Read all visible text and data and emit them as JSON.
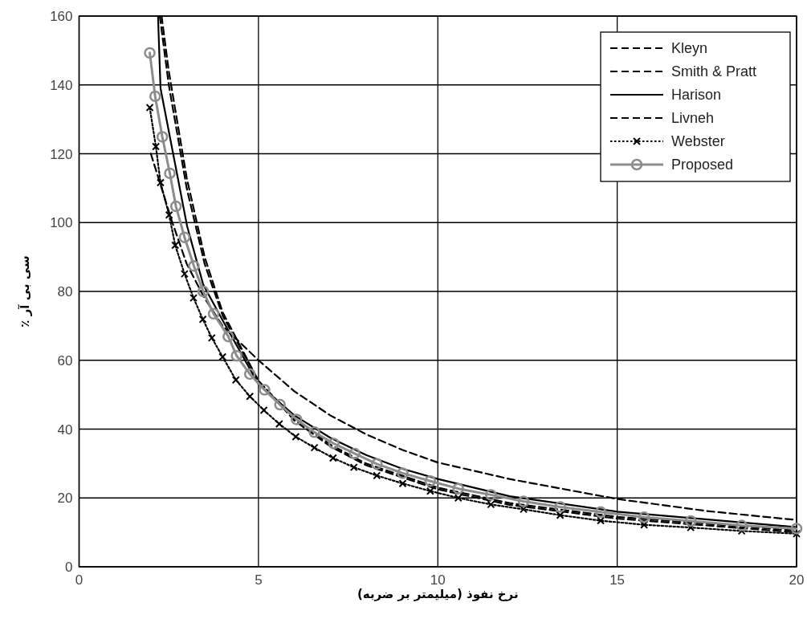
{
  "chart_data": {
    "type": "line",
    "xlabel": "نرخ نفوذ (میلیمتر بر ضربه)",
    "ylabel": "سی بی آر ٪",
    "xlim": [
      0,
      20
    ],
    "ylim": [
      0,
      160
    ],
    "xticks": [
      0,
      5,
      10,
      15,
      20
    ],
    "yticks": [
      0,
      20,
      40,
      60,
      80,
      100,
      120,
      140,
      160
    ],
    "grid": true,
    "legend": "top right",
    "series": [
      {
        "name": "Kleyn",
        "color": "#000000",
        "line_style": "dashed",
        "marker": "none",
        "x": [
          2,
          2.3,
          2.6,
          3,
          3.5,
          4,
          4.5,
          5,
          6,
          7,
          8,
          9,
          10,
          12,
          15,
          17.5,
          20
        ],
        "values": [
          120,
          110,
          100,
          88,
          78,
          70,
          65,
          60,
          51,
          44,
          38.5,
          34,
          30.3,
          25.5,
          19.7,
          16.2,
          13.6
        ]
      },
      {
        "name": "Smith & Pratt",
        "color": "#000000",
        "line_style": "dashed",
        "marker": "none",
        "x": [
          2.25,
          2.5,
          3,
          3.5,
          4,
          5,
          6,
          7,
          8,
          10,
          12,
          15,
          20
        ],
        "values": [
          160,
          140,
          110,
          88,
          73,
          54,
          43,
          35.5,
          30,
          23,
          18.5,
          14.5,
          10.5
        ]
      },
      {
        "name": "Harison",
        "color": "#000000",
        "line_style": "solid",
        "marker": "none",
        "x": [
          2.2,
          2.27,
          2.64,
          3.01,
          3.46,
          3.98,
          5,
          6,
          7,
          8,
          9,
          10,
          12,
          15,
          20
        ],
        "values": [
          160,
          139,
          119,
          99,
          82,
          72,
          53,
          44,
          37.5,
          32.5,
          28.5,
          25.5,
          20.5,
          16,
          11.5
        ]
      },
      {
        "name": "Livneh",
        "color": "#000000",
        "line_style": "dashed",
        "marker": "none",
        "x": [
          2.3,
          2.5,
          3,
          3.5,
          4,
          5,
          6,
          7,
          8,
          10,
          12,
          15,
          20
        ],
        "values": [
          160,
          144,
          113,
          90,
          74,
          54,
          42.5,
          35,
          29.5,
          22.5,
          18,
          14,
          10
        ]
      },
      {
        "name": "Webster",
        "color": "#000000",
        "line_style": "dotted",
        "marker": "cross",
        "x": [
          1.97,
          2.14,
          2.27,
          2.51,
          2.68,
          2.94,
          3.19,
          3.45,
          3.7,
          4.0,
          4.37,
          4.76,
          5.15,
          5.58,
          6.04,
          6.56,
          7.08,
          7.66,
          8.3,
          9.02,
          9.79,
          10.57,
          11.48,
          12.39,
          13.41,
          14.54,
          15.75,
          17.05,
          18.47,
          20
        ],
        "values": [
          133.4,
          122.1,
          111.6,
          102.2,
          93.4,
          85.1,
          78.1,
          71.9,
          66.5,
          61,
          54.3,
          49.5,
          45.5,
          41.5,
          37.8,
          34.6,
          31.6,
          28.9,
          26.5,
          24.2,
          22,
          20,
          18.1,
          16.7,
          15,
          13.4,
          12.2,
          11.4,
          10.4,
          9.6
        ]
      },
      {
        "name": "Proposed",
        "color": "#8c8c8c",
        "line_style": "solid",
        "marker": "circle",
        "x": [
          1.97,
          2.12,
          2.32,
          2.53,
          2.7,
          2.94,
          3.2,
          3.46,
          3.75,
          4.16,
          4.39,
          4.76,
          5.17,
          5.6,
          6.06,
          6.56,
          7.1,
          7.68,
          8.3,
          9.02,
          9.79,
          10.57,
          11.48,
          12.39,
          13.41,
          14.54,
          15.75,
          17.05,
          18.47,
          20
        ],
        "values": [
          149.3,
          136.7,
          124.9,
          114.3,
          104.7,
          95.7,
          87.4,
          80,
          73.5,
          66.9,
          61.3,
          56,
          51.4,
          47.1,
          42.8,
          39.1,
          35.8,
          32.9,
          29.9,
          27.2,
          24.9,
          22.7,
          20.9,
          19,
          17.4,
          15.9,
          14.4,
          13.3,
          12,
          11.1
        ]
      }
    ]
  }
}
